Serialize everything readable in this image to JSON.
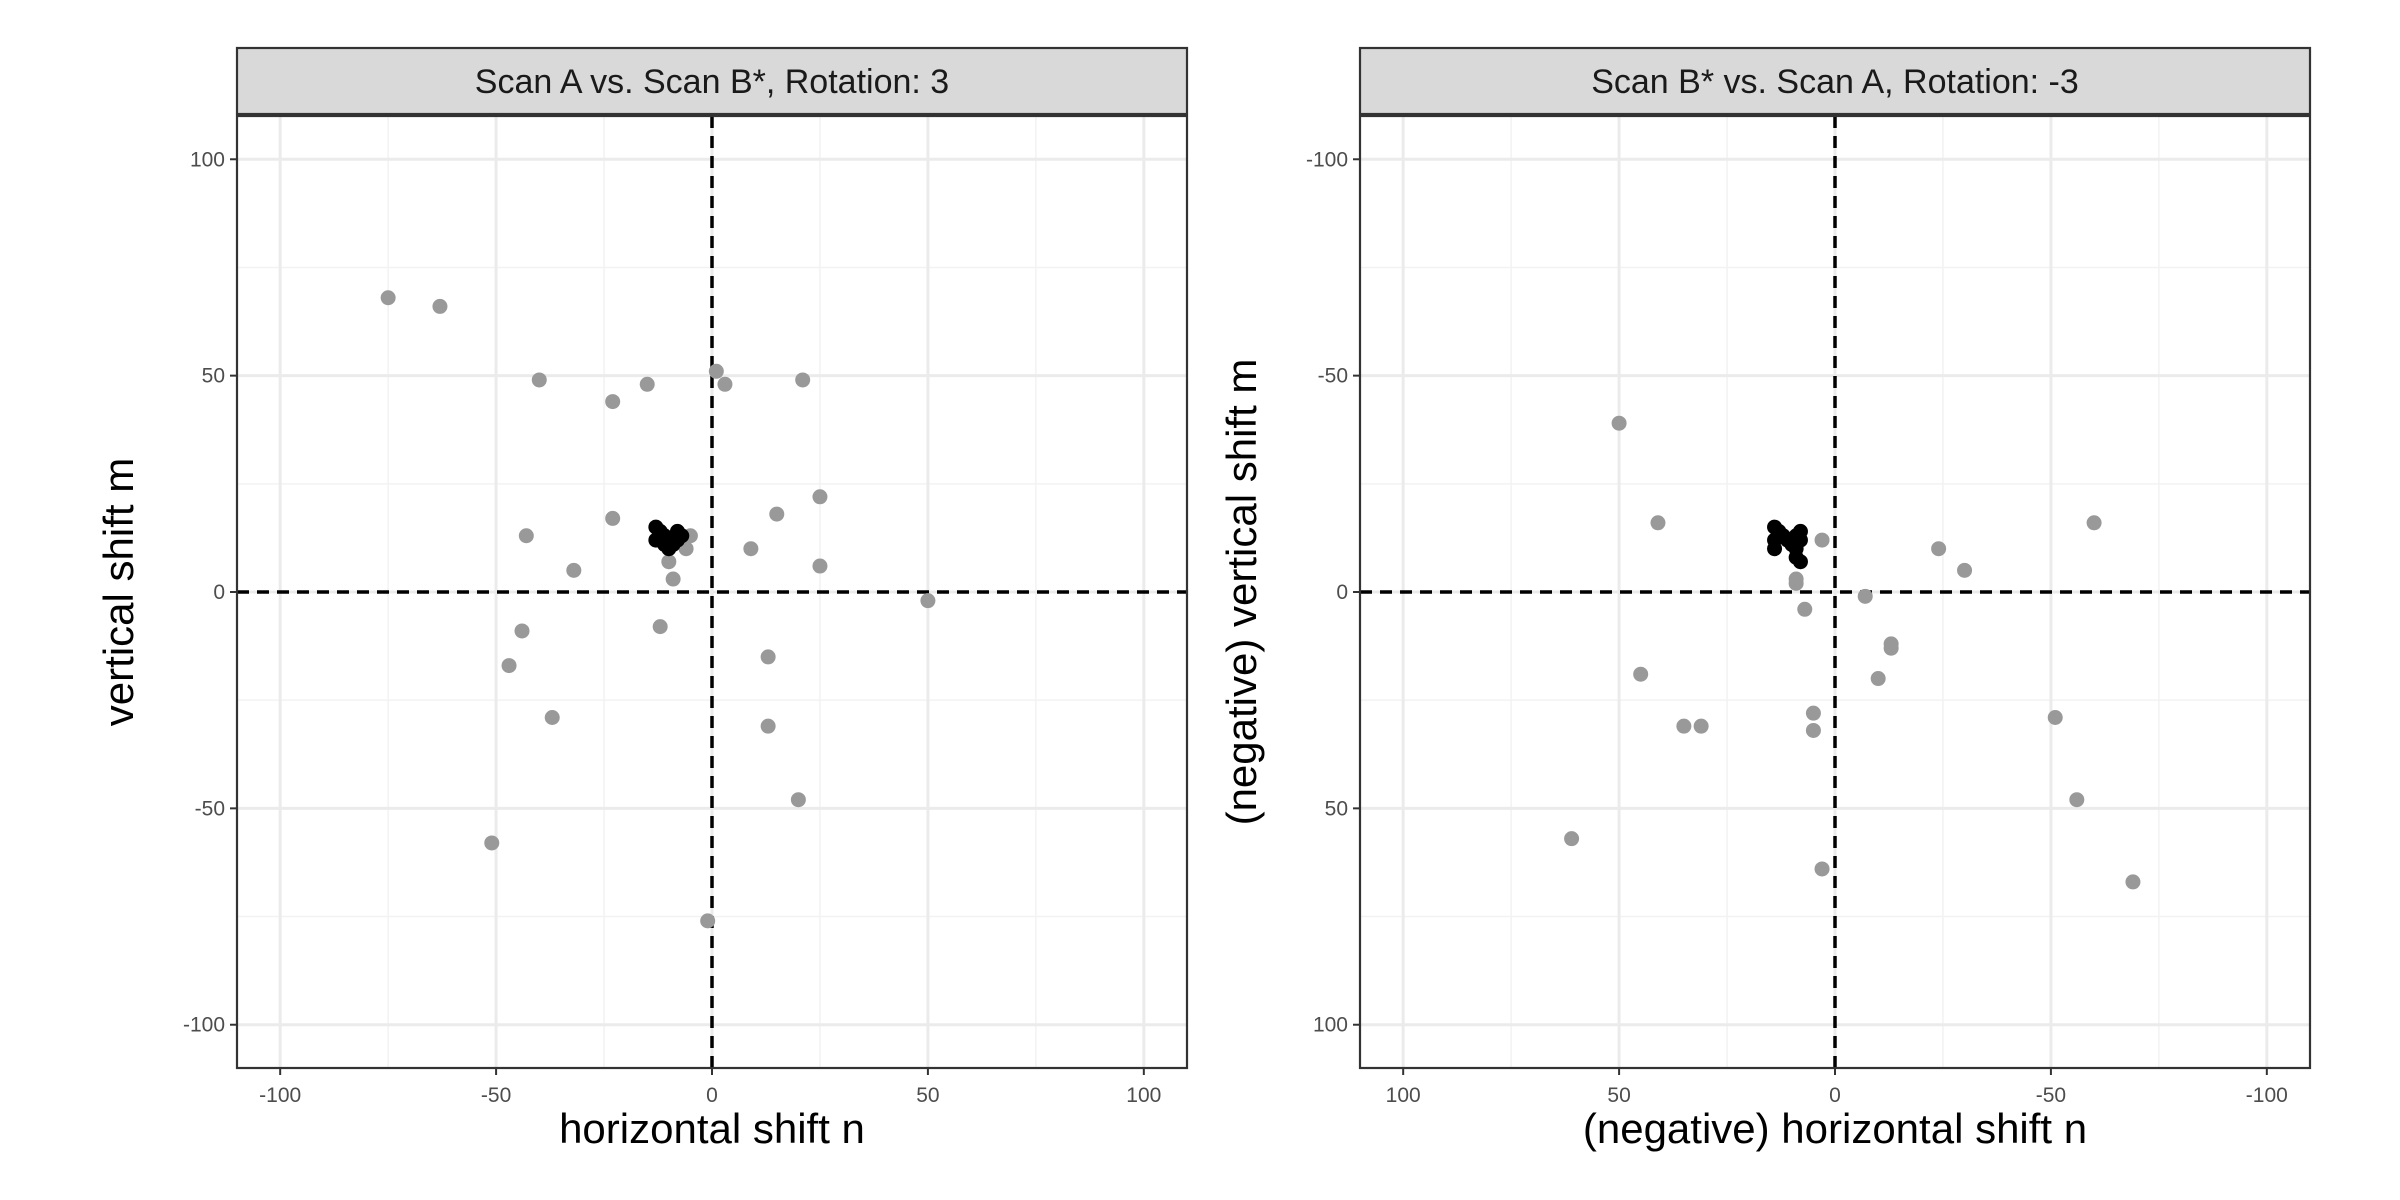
{
  "chart_data": [
    {
      "type": "scatter",
      "title": "Scan A vs. Scan B*, Rotation: 3",
      "xlabel": "horizontal shift n",
      "ylabel": "vertical shift m",
      "xlim": [
        -110,
        110
      ],
      "ylim": [
        -110,
        110
      ],
      "x_reversed": false,
      "y_reversed": false,
      "ticks": [
        -100,
        -50,
        0,
        50,
        100
      ],
      "tick_labels": [
        "-100",
        "-50",
        "0",
        "50",
        "100"
      ],
      "reference_lines": {
        "x": 0,
        "y": 0,
        "style": "dashed"
      },
      "grid": true,
      "colors": {
        "highlight": "#000000",
        "other": "#999999"
      },
      "series": [
        {
          "points": [
            [
              -75,
              68
            ],
            [
              -63,
              66
            ],
            [
              -40,
              49
            ],
            [
              -23,
              44
            ],
            [
              -15,
              48
            ],
            [
              1,
              51
            ],
            [
              3,
              48
            ],
            [
              21,
              49
            ],
            [
              -23,
              17
            ],
            [
              -43,
              13
            ],
            [
              -32,
              5
            ],
            [
              -44,
              -9
            ],
            [
              -47,
              -17
            ],
            [
              -37,
              -29
            ],
            [
              -51,
              -58
            ],
            [
              -12,
              -8
            ],
            [
              -10,
              7
            ],
            [
              -9,
              3
            ],
            [
              -6,
              10
            ],
            [
              -5,
              13
            ],
            [
              9,
              10
            ],
            [
              15,
              18
            ],
            [
              25,
              22
            ],
            [
              25,
              6
            ],
            [
              50,
              -2
            ],
            [
              13,
              -15
            ],
            [
              13,
              -31
            ],
            [
              20,
              -48
            ],
            [
              -1,
              -76
            ]
          ]
        },
        {
          "points": [
            [
              -13,
              15
            ],
            [
              -12,
              14
            ],
            [
              -13,
              12
            ],
            [
              -12,
              12
            ],
            [
              -11,
              13
            ],
            [
              -10,
              12
            ],
            [
              -9,
              11
            ],
            [
              -10,
              10
            ],
            [
              -8,
              12
            ],
            [
              -8,
              14
            ],
            [
              -7,
              13
            ],
            [
              -11,
              11
            ]
          ]
        }
      ]
    },
    {
      "type": "scatter",
      "title": "Scan B* vs. Scan A, Rotation: -3",
      "xlabel": "(negative) horizontal shift n",
      "ylabel": "(negative) vertical shift m",
      "xlim": [
        -110,
        110
      ],
      "ylim": [
        -110,
        110
      ],
      "x_reversed": true,
      "y_reversed": true,
      "ticks": [
        -100,
        -50,
        0,
        50,
        100
      ],
      "tick_labels": [
        "-100",
        "-50",
        "0",
        "50",
        "100"
      ],
      "reference_lines": {
        "x": 0,
        "y": 0,
        "style": "dashed"
      },
      "grid": true,
      "colors": {
        "highlight": "#000000",
        "other": "#999999"
      },
      "series": [
        {
          "points": [
            [
              50,
              -39
            ],
            [
              41,
              -16
            ],
            [
              45,
              19
            ],
            [
              35,
              31
            ],
            [
              31,
              31
            ],
            [
              61,
              57
            ],
            [
              3,
              64
            ],
            [
              5,
              28
            ],
            [
              5,
              32
            ],
            [
              7,
              4
            ],
            [
              9,
              -2
            ],
            [
              9,
              -3
            ],
            [
              3,
              -12
            ],
            [
              -7,
              1
            ],
            [
              -13,
              12
            ],
            [
              -13,
              13
            ],
            [
              -10,
              20
            ],
            [
              -24,
              -10
            ],
            [
              -30,
              -5
            ],
            [
              -60,
              -16
            ],
            [
              -51,
              29
            ],
            [
              -56,
              48
            ],
            [
              -69,
              67
            ]
          ]
        },
        {
          "points": [
            [
              14,
              -15
            ],
            [
              13,
              -14
            ],
            [
              14,
              -12
            ],
            [
              12,
              -13
            ],
            [
              11,
              -12
            ],
            [
              10,
              -11
            ],
            [
              9,
              -10
            ],
            [
              8,
              -12
            ],
            [
              8,
              -14
            ],
            [
              9,
              -13
            ],
            [
              14,
              -10
            ],
            [
              9,
              -8
            ],
            [
              8,
              -7
            ]
          ]
        }
      ]
    }
  ]
}
